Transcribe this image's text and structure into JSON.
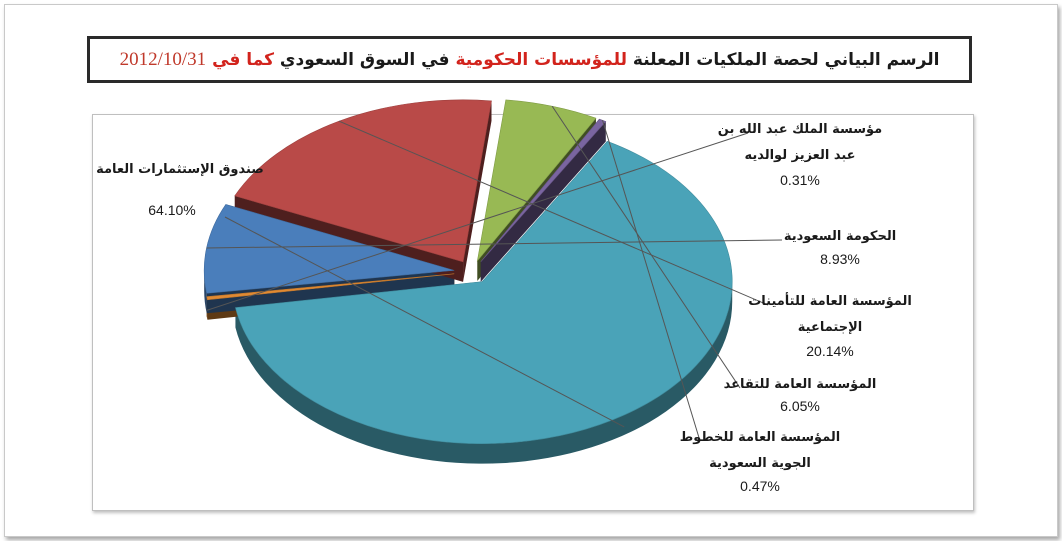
{
  "title": {
    "part1": "الرسم البياني لحصة الملكيات المعلنة",
    "part2": "للمؤسسات الحكومية",
    "part3": "في السوق السعودي",
    "part4": "كما في",
    "date": "2012/10/31"
  },
  "colors": {
    "title_dark": "#1a1a1a",
    "title_red": "#d2231c"
  },
  "chart_data": {
    "type": "pie",
    "title": "الرسم البياني لحصة الملكيات المعلنة للمؤسسات الحكومية في السوق السعودي كما في 2012/10/31",
    "unit": "%",
    "slices": [
      {
        "label": "صندوق الإستثمارات العامة",
        "label_lines": [
          "صندوق الإستثمارات العامة"
        ],
        "value": 64.1,
        "value_text": "64.10%",
        "color": "#4aa3b8"
      },
      {
        "label": "مؤسسة الملك عبد الله بن عبد العزيز لوالديه",
        "label_lines": [
          "مؤسسة الملك عبد الله بن",
          "عبد العزيز لوالديه"
        ],
        "value": 0.31,
        "value_text": "0.31%",
        "color": "#e08a33"
      },
      {
        "label": "الحكومة السعودية",
        "label_lines": [
          "الحكومة السعودية"
        ],
        "value": 8.93,
        "value_text": "8.93%",
        "color": "#4a7ebb"
      },
      {
        "label": "المؤسسة العامة للتأمينات الإجتماعية",
        "label_lines": [
          "المؤسسة العامة للتأمينات",
          "الإجتماعية"
        ],
        "value": 20.14,
        "value_text": "20.14%",
        "color": "#b94a48"
      },
      {
        "label": "المؤسسة العامة للتقاعد",
        "label_lines": [
          "المؤسسة العامة للتقاعد"
        ],
        "value": 6.05,
        "value_text": "6.05%",
        "color": "#98b954"
      },
      {
        "label": "المؤسسة العامة للخطوط الجوية السعودية",
        "label_lines": [
          "المؤسسة العامة للخطوط",
          "الجوية السعودية"
        ],
        "value": 0.47,
        "value_text": "0.47%",
        "color": "#7a65a0"
      }
    ],
    "legend": "none",
    "style": "3d-exploded"
  }
}
